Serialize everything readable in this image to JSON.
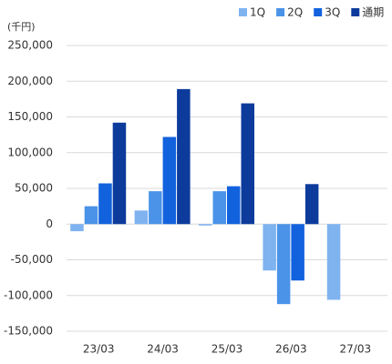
{
  "chart_data": {
    "type": "bar",
    "unit_label": "(千円)",
    "categories": [
      "23/03",
      "24/03",
      "25/03",
      "26/03",
      "27/03"
    ],
    "series": [
      {
        "name": "1Q",
        "color": "#7fb3f0",
        "values": [
          -10000,
          19000,
          -2000,
          -65000,
          -106000
        ]
      },
      {
        "name": "2Q",
        "color": "#4a93e8",
        "values": [
          25000,
          46000,
          46000,
          -112000,
          null
        ]
      },
      {
        "name": "3Q",
        "color": "#1262de",
        "values": [
          57000,
          122000,
          53000,
          -79000,
          null
        ]
      },
      {
        "name": "通期",
        "color": "#0c3b9c",
        "values": [
          142000,
          189000,
          169000,
          56000,
          null
        ]
      }
    ],
    "ylim": [
      -150000,
      250000
    ],
    "yticks": [
      {
        "value": -150000,
        "label": "-150,000"
      },
      {
        "value": -100000,
        "label": "-100,000"
      },
      {
        "value": -50000,
        "label": "-50,000"
      },
      0,
      {
        "value": 50000,
        "label": "50,000"
      },
      {
        "value": 100000,
        "label": "100,000"
      },
      {
        "value": 150000,
        "label": "150,000"
      },
      {
        "value": 200000,
        "label": "200,000"
      },
      {
        "value": 250000,
        "label": "250,000"
      }
    ],
    "grid": true,
    "legend": "top-right"
  }
}
